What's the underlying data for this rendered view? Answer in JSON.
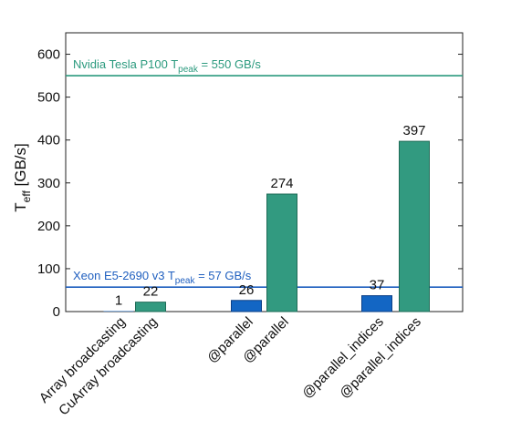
{
  "chart_data": {
    "type": "bar",
    "ylabel": {
      "main": "T",
      "sub": "eff",
      "unit": "  [GB/s]"
    },
    "ylim": [
      0,
      650
    ],
    "yticks": [
      0,
      100,
      200,
      300,
      400,
      500,
      600
    ],
    "grid": false,
    "legend": "none",
    "categories": [
      "Array broadcasting",
      "CuArray broadcasting",
      "@parallel",
      "@parallel",
      "@parallel_indices",
      "@parallel_indices"
    ],
    "bars": [
      {
        "category": "Array broadcasting",
        "value": 1,
        "label": "1",
        "hardware": "cpu"
      },
      {
        "category": "CuArray broadcasting",
        "value": 22,
        "label": "22",
        "hardware": "gpu"
      },
      {
        "category": "@parallel",
        "value": 26,
        "label": "26",
        "hardware": "cpu"
      },
      {
        "category": "@parallel",
        "value": 274,
        "label": "274",
        "hardware": "gpu"
      },
      {
        "category": "@parallel_indices",
        "value": 37,
        "label": "37",
        "hardware": "cpu"
      },
      {
        "category": "@parallel_indices",
        "value": 397,
        "label": "397",
        "hardware": "gpu"
      }
    ],
    "reference_lines": [
      {
        "name": "gpu-peak",
        "value": 550,
        "label_main": "Nvidia Tesla P100 T",
        "label_sub": "peak",
        "label_tail": " = 550 GB/s",
        "color": "#2b9a7e"
      },
      {
        "name": "cpu-peak",
        "value": 57,
        "label_main": "Xeon E5-2690 v3 T",
        "label_sub": "peak",
        "label_tail": " = 57 GB/s",
        "color": "#1f5fbf"
      }
    ],
    "colors": {
      "cpu": "#1366c4",
      "gpu": "#329a80",
      "cpu_edge": "#0b3f86",
      "gpu_edge": "#1f6b57"
    }
  }
}
